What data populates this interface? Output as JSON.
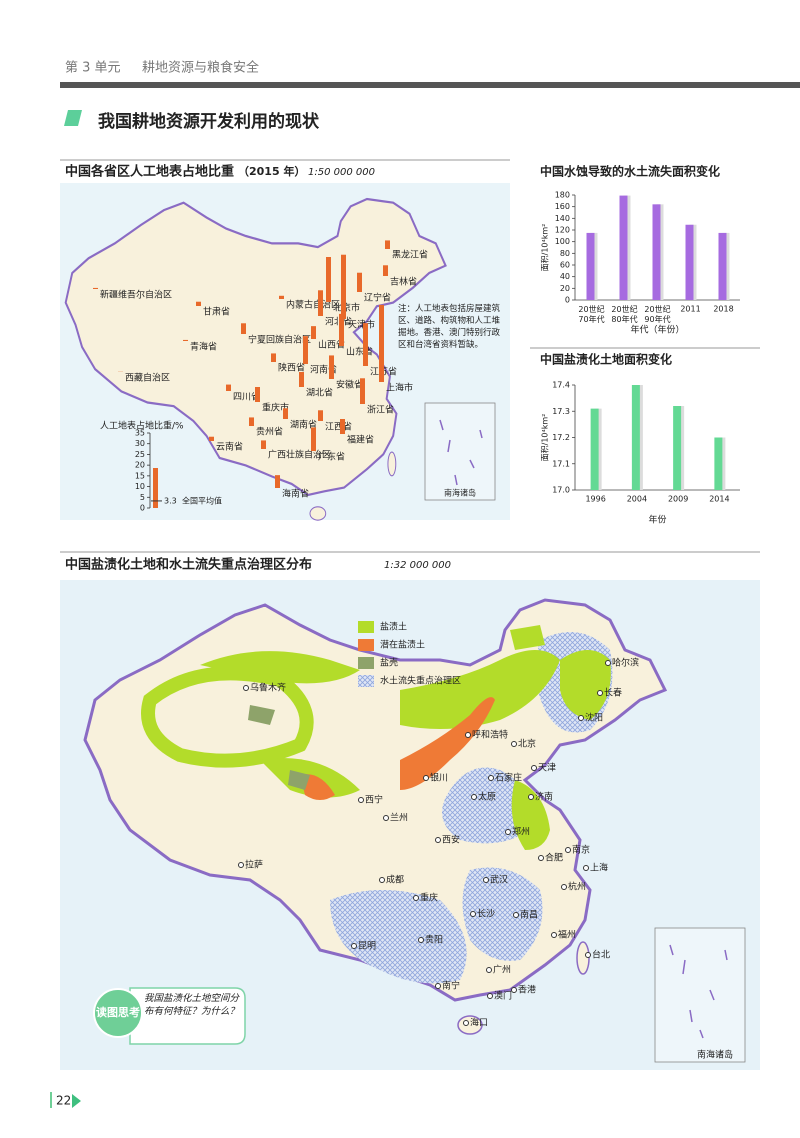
{
  "header": {
    "unit": "第 3 单元",
    "title": "耕地资源与粮食安全"
  },
  "section_title": "我国耕地资源开发利用的现状",
  "map1": {
    "title": "中国各省区人工地表占地比重",
    "year": "（2015 年）",
    "scale": "1:50 000 000",
    "note": "注：人工地表包括房屋建筑区、道路、构筑物和人工堆掘地。香港、澳门特别行政区和台湾省资料暂缺。",
    "legend": {
      "title": "人工地表占地比重/%",
      "ticks": [
        0,
        5,
        10,
        15,
        20,
        25,
        30,
        35
      ],
      "average": 3.3,
      "average_label": "全国平均值"
    },
    "provinces": [
      {
        "name": "新疆维吾尔自治区",
        "value": 0.5
      },
      {
        "name": "西藏自治区",
        "value": 0.1
      },
      {
        "name": "青海省",
        "value": 0.5
      },
      {
        "name": "甘肃省",
        "value": 2
      },
      {
        "name": "内蒙古自治区",
        "value": 1.5
      },
      {
        "name": "宁夏回族自治区",
        "value": 5
      },
      {
        "name": "陕西省",
        "value": 4
      },
      {
        "name": "山西省",
        "value": 6
      },
      {
        "name": "河北省",
        "value": 12
      },
      {
        "name": "北京市",
        "value": 21
      },
      {
        "name": "天津市",
        "value": 30
      },
      {
        "name": "辽宁省",
        "value": 9
      },
      {
        "name": "吉林省",
        "value": 5
      },
      {
        "name": "黑龙江省",
        "value": 4
      },
      {
        "name": "山东省",
        "value": 15
      },
      {
        "name": "河南省",
        "value": 13
      },
      {
        "name": "江苏省",
        "value": 20
      },
      {
        "name": "安徽省",
        "value": 11
      },
      {
        "name": "上海市",
        "value": 36
      },
      {
        "name": "湖北省",
        "value": 7
      },
      {
        "name": "四川省",
        "value": 3
      },
      {
        "name": "重庆市",
        "value": 7
      },
      {
        "name": "浙江省",
        "value": 12
      },
      {
        "name": "贵州省",
        "value": 4
      },
      {
        "name": "湖南省",
        "value": 5
      },
      {
        "name": "江西省",
        "value": 5
      },
      {
        "name": "福建省",
        "value": 7
      },
      {
        "name": "云南省",
        "value": 2
      },
      {
        "name": "广西壮族自治区",
        "value": 4
      },
      {
        "name": "广东省",
        "value": 11
      },
      {
        "name": "海南省",
        "value": 6
      }
    ],
    "inset_label": "南海诸岛"
  },
  "chart_data": [
    {
      "type": "bar",
      "title": "中国水蚀导致的水土流失面积变化",
      "y_label": "面积/10⁴km²",
      "x_label": "年代（年份）",
      "categories": [
        "20世纪\n70年代",
        "20世纪\n80年代",
        "20世纪\n90年代",
        "2011",
        "2018"
      ],
      "values": [
        115,
        179,
        164,
        129,
        115
      ],
      "color": "#a66be0",
      "ylim": [
        0,
        180
      ],
      "yticks": [
        0,
        20,
        40,
        60,
        80,
        100,
        120,
        140,
        160,
        180
      ]
    },
    {
      "type": "bar",
      "title": "中国盐渍化土地面积变化",
      "y_label": "面积/10⁴km²",
      "x_label": "年份",
      "categories": [
        "1996",
        "2004",
        "2009",
        "2014"
      ],
      "values": [
        17.31,
        17.4,
        17.32,
        17.2
      ],
      "color": "#63d994",
      "ylim": [
        17,
        17.4
      ],
      "yticks": [
        {
          "value": 17,
          "label": "17.0"
        },
        17.1,
        17.2,
        17.3,
        17.4
      ]
    }
  ],
  "map2": {
    "title": "中国盐渍化土地和水土流失重点治理区分布",
    "scale": "1:32 000 000",
    "legend": [
      {
        "name": "盐渍土",
        "color": "#b3dc2a"
      },
      {
        "name": "潜在盐渍土",
        "color": "#ef7a36"
      },
      {
        "name": "盐壳",
        "color": "#8ea36a"
      },
      {
        "name": "水土流失重点治理区",
        "color": "#8fa6dc"
      }
    ],
    "cities": [
      "乌鲁木齐",
      "哈尔滨",
      "长春",
      "沈阳",
      "呼和浩特",
      "北京",
      "天津",
      "石家庄",
      "太原",
      "银川",
      "西宁",
      "兰州",
      "济南",
      "郑州",
      "西安",
      "南京",
      "合肥",
      "上海",
      "杭州",
      "拉萨",
      "成都",
      "重庆",
      "武汉",
      "长沙",
      "南昌",
      "福州",
      "贵阳",
      "昆明",
      "台北",
      "广州",
      "香港",
      "澳门",
      "南宁",
      "海口"
    ],
    "inset_label": "南海诸岛",
    "think": {
      "badge": "读图思考",
      "question": "我国盐渍化土地空间分布有何特征？为什么？"
    }
  },
  "page_number": "22"
}
